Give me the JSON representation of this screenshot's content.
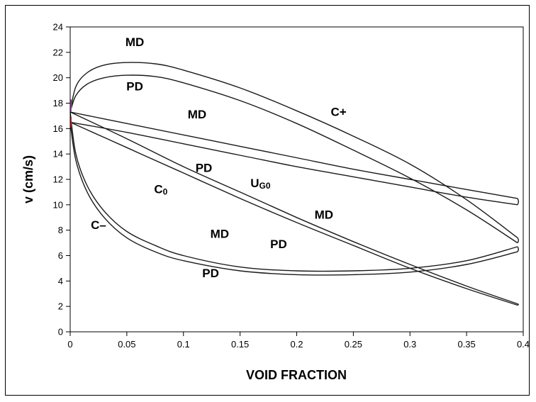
{
  "chart_data": {
    "type": "line",
    "title": "",
    "xlabel": "VOID FRACTION",
    "ylabel": "v (cm/s)",
    "xlim": [
      0,
      0.4
    ],
    "ylim": [
      0,
      24
    ],
    "x_ticks": [
      "0",
      "0.05",
      "0.1",
      "0.15",
      "0.2",
      "0.25",
      "0.3",
      "0.35",
      "0.4"
    ],
    "y_ticks": [
      "0",
      "2",
      "4",
      "6",
      "8",
      "10",
      "12",
      "14",
      "16",
      "18",
      "20",
      "22",
      "24"
    ],
    "grid": false,
    "line_color": "#1a1a1a",
    "series": [
      {
        "name": "C+",
        "loop": true,
        "upper": [
          [
            0,
            17.3
          ],
          [
            0.005,
            19.3
          ],
          [
            0.015,
            20.4
          ],
          [
            0.03,
            21.0
          ],
          [
            0.05,
            21.2
          ],
          [
            0.075,
            21.1
          ],
          [
            0.1,
            20.6
          ],
          [
            0.15,
            19.2
          ],
          [
            0.2,
            17.4
          ],
          [
            0.25,
            15.4
          ],
          [
            0.3,
            13.2
          ],
          [
            0.35,
            10.4
          ],
          [
            0.395,
            7.4
          ]
        ],
        "lower": [
          [
            0,
            17.3
          ],
          [
            0.005,
            18.6
          ],
          [
            0.015,
            19.5
          ],
          [
            0.03,
            20.0
          ],
          [
            0.05,
            20.2
          ],
          [
            0.075,
            20.1
          ],
          [
            0.1,
            19.6
          ],
          [
            0.15,
            18.2
          ],
          [
            0.2,
            16.4
          ],
          [
            0.25,
            14.3
          ],
          [
            0.3,
            12.1
          ],
          [
            0.35,
            9.6
          ],
          [
            0.395,
            7.0
          ]
        ]
      },
      {
        "name": "UG0",
        "loop": true,
        "upper": [
          [
            0,
            17.3
          ],
          [
            0.05,
            16.4
          ],
          [
            0.1,
            15.5
          ],
          [
            0.15,
            14.6
          ],
          [
            0.2,
            13.7
          ],
          [
            0.25,
            12.8
          ],
          [
            0.3,
            12.0
          ],
          [
            0.35,
            11.2
          ],
          [
            0.395,
            10.5
          ]
        ],
        "lower": [
          [
            0,
            16.5
          ],
          [
            0.05,
            15.7
          ],
          [
            0.1,
            14.8
          ],
          [
            0.15,
            13.9
          ],
          [
            0.2,
            13.0
          ],
          [
            0.25,
            12.2
          ],
          [
            0.3,
            11.4
          ],
          [
            0.35,
            10.6
          ],
          [
            0.395,
            10.0
          ]
        ]
      },
      {
        "name": "C0",
        "loop": true,
        "upper": [
          [
            0,
            17.3
          ],
          [
            0.05,
            15.2
          ],
          [
            0.1,
            13.0
          ],
          [
            0.15,
            11.0
          ],
          [
            0.2,
            9.0
          ],
          [
            0.25,
            7.1
          ],
          [
            0.3,
            5.3
          ],
          [
            0.35,
            3.6
          ],
          [
            0.395,
            2.2
          ]
        ],
        "lower": [
          [
            0,
            16.5
          ],
          [
            0.05,
            14.5
          ],
          [
            0.1,
            12.5
          ],
          [
            0.15,
            10.5
          ],
          [
            0.2,
            8.6
          ],
          [
            0.25,
            6.8
          ],
          [
            0.3,
            5.0
          ],
          [
            0.35,
            3.4
          ],
          [
            0.395,
            2.1
          ]
        ]
      },
      {
        "name": "C-",
        "loop": true,
        "upper": [
          [
            0,
            17.3
          ],
          [
            0.005,
            14.0
          ],
          [
            0.015,
            11.5
          ],
          [
            0.03,
            9.5
          ],
          [
            0.05,
            7.9
          ],
          [
            0.075,
            6.8
          ],
          [
            0.1,
            6.0
          ],
          [
            0.15,
            5.1
          ],
          [
            0.2,
            4.8
          ],
          [
            0.25,
            4.8
          ],
          [
            0.3,
            5.0
          ],
          [
            0.35,
            5.6
          ],
          [
            0.395,
            6.7
          ]
        ],
        "lower": [
          [
            0,
            16.5
          ],
          [
            0.005,
            13.5
          ],
          [
            0.015,
            11.0
          ],
          [
            0.03,
            9.0
          ],
          [
            0.05,
            7.4
          ],
          [
            0.075,
            6.3
          ],
          [
            0.1,
            5.6
          ],
          [
            0.15,
            4.8
          ],
          [
            0.2,
            4.5
          ],
          [
            0.25,
            4.5
          ],
          [
            0.3,
            4.7
          ],
          [
            0.35,
            5.3
          ],
          [
            0.395,
            6.3
          ]
        ]
      }
    ],
    "annotations": [
      {
        "text": "MD",
        "x": 0.057,
        "y": 22.5
      },
      {
        "text": "PD",
        "x": 0.057,
        "y": 19.0
      },
      {
        "text": "MD",
        "x": 0.112,
        "y": 16.8
      },
      {
        "text": "C+",
        "x": 0.237,
        "y": 17.0
      },
      {
        "text": "PD",
        "x": 0.118,
        "y": 12.6
      },
      {
        "text": "C",
        "sub": "0",
        "x": 0.08,
        "y": 10.9
      },
      {
        "text": "U",
        "sub": "G0",
        "x": 0.168,
        "y": 11.4
      },
      {
        "text": "MD",
        "x": 0.224,
        "y": 8.9
      },
      {
        "text": "C–",
        "x": 0.025,
        "y": 8.1
      },
      {
        "text": "MD",
        "x": 0.132,
        "y": 7.4
      },
      {
        "text": "PD",
        "x": 0.184,
        "y": 6.6
      },
      {
        "text": "PD",
        "x": 0.124,
        "y": 4.3
      }
    ]
  }
}
